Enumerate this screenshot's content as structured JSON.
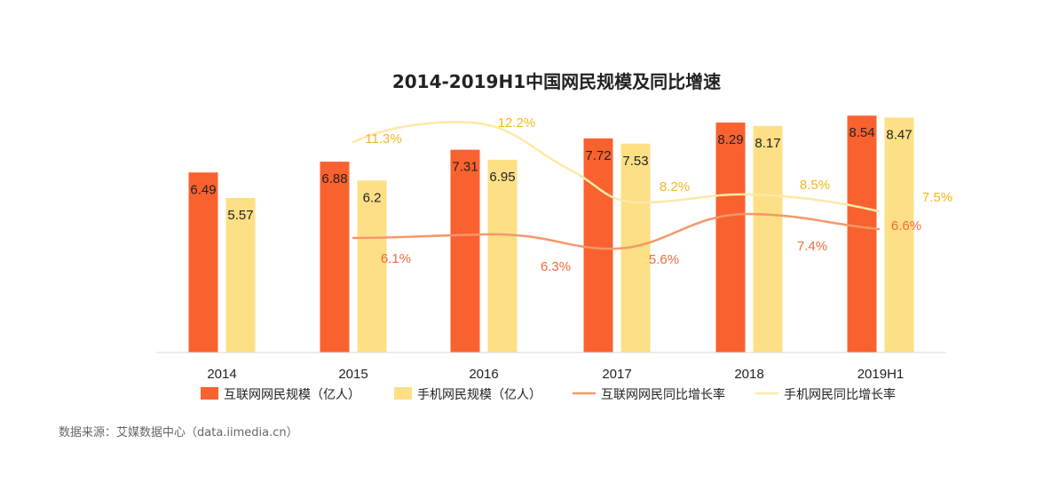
{
  "chart_data": {
    "type": "bar",
    "title": "2014-2019H1中国网民规模及同比增速",
    "categories": [
      "2014",
      "2015",
      "2016",
      "2017",
      "2018",
      "2019H1"
    ],
    "series": [
      {
        "name": "互联网网民规模（亿人）",
        "kind": "bar",
        "color": "#F9622F",
        "values": [
          6.49,
          6.88,
          7.31,
          7.72,
          8.29,
          8.54
        ],
        "labels": [
          "6.49",
          "6.88",
          "7.31",
          "7.72",
          "8.29",
          "8.54"
        ]
      },
      {
        "name": "手机网民规模（亿人）",
        "kind": "bar",
        "color": "#FDDF85",
        "values": [
          5.57,
          6.2,
          6.95,
          7.53,
          8.17,
          8.47
        ],
        "labels": [
          "5.57",
          "6.2",
          "6.95",
          "7.53",
          "8.17",
          "8.47"
        ]
      },
      {
        "name": "互联网网民同比增长率",
        "kind": "line",
        "color": "#F7976A",
        "label_color": "#F46A3E",
        "values": [
          null,
          6.1,
          6.3,
          5.6,
          7.4,
          6.6
        ],
        "labels": [
          "",
          "6.1%",
          "6.3%",
          "5.6%",
          "7.4%",
          "6.6%"
        ]
      },
      {
        "name": "手机网民同比增长率",
        "kind": "line",
        "color": "#FDE9A7",
        "label_color": "#F2B81C",
        "values": [
          null,
          11.3,
          12.2,
          8.2,
          8.5,
          7.5
        ],
        "labels": [
          "",
          "11.3%",
          "12.2%",
          "8.2%",
          "8.5%",
          "7.5%"
        ]
      }
    ],
    "bar_ylim": [
      0,
      8.9
    ],
    "line_ylim": [
      0,
      22
    ],
    "grid": false,
    "legend_position": "bottom"
  },
  "source": "数据来源：艾媒数据中心（data.iimedia.cn）"
}
